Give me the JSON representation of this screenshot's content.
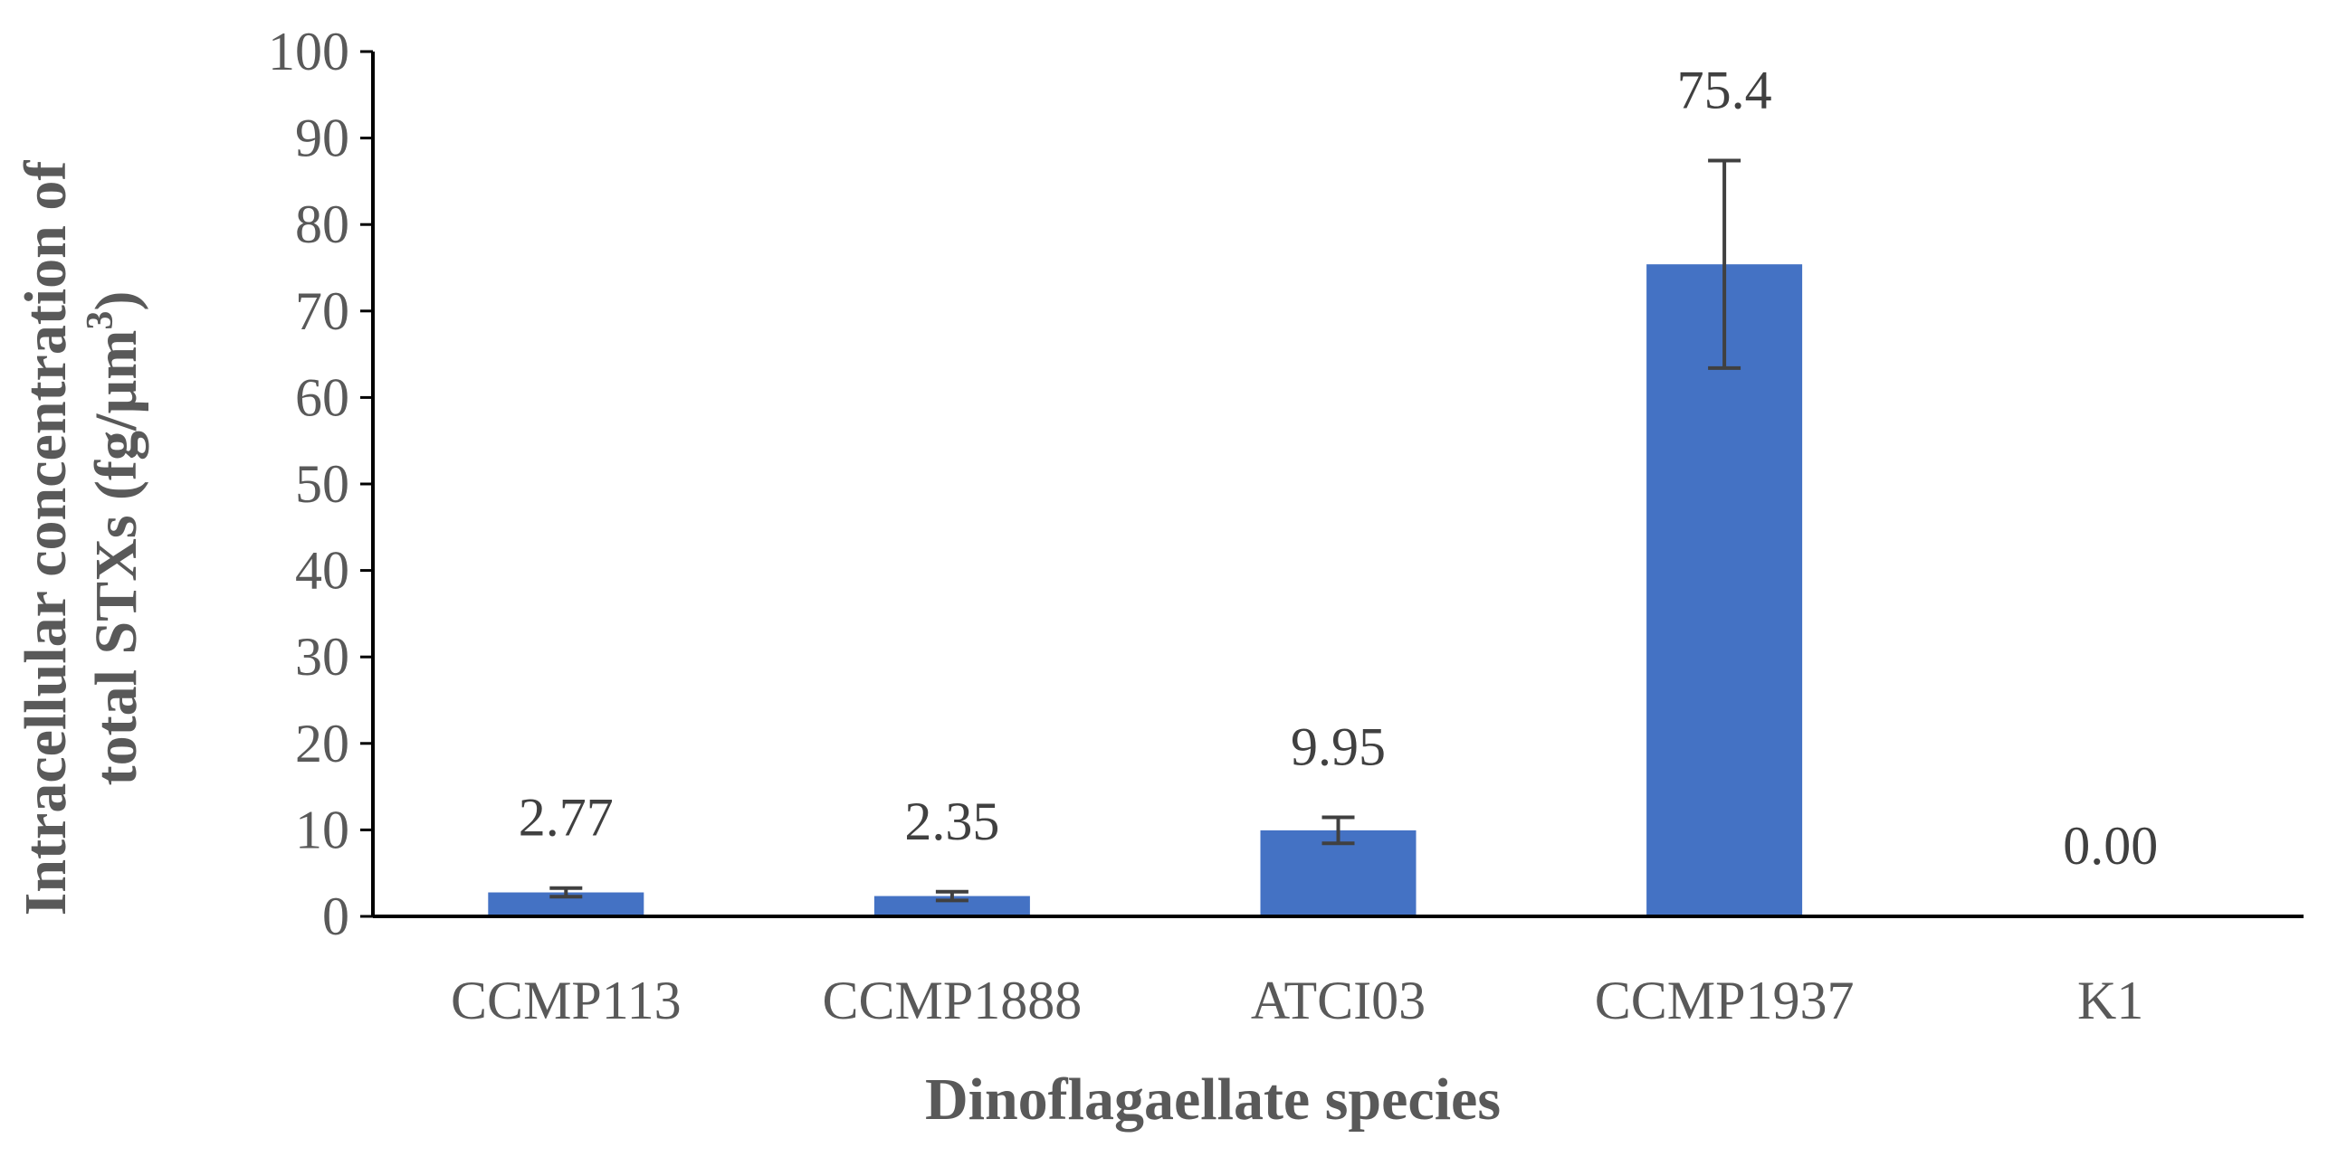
{
  "chart_data": {
    "type": "bar",
    "title": "",
    "xlabel": "Dinoflagaellate species",
    "ylabel_line1": "Intracellular  concentration of",
    "ylabel_line2_prefix": "total STXs (fg/µm",
    "ylabel_line2_sup": "3",
    "ylabel_line2_suffix": ")",
    "categories": [
      "CCMP113",
      "CCMP1888",
      "ATCI03",
      "CCMP1937",
      "K1"
    ],
    "values": [
      2.77,
      2.35,
      9.95,
      75.4,
      0.0
    ],
    "error_plus": [
      0.5,
      0.5,
      1.5,
      12.0,
      0
    ],
    "error_minus": [
      0.5,
      0.5,
      1.5,
      12.0,
      0
    ],
    "data_labels": [
      "2.77",
      "2.35",
      "9.95",
      "75.4",
      "0.00"
    ],
    "ylim": [
      0,
      100
    ],
    "yticks": [
      "0",
      "10",
      "20",
      "30",
      "40",
      "50",
      "60",
      "70",
      "80",
      "90",
      "100"
    ],
    "grid": false,
    "legend": "none",
    "colors": {
      "bar": "#4472C4",
      "error_bar": "#404040",
      "axis": "#000000"
    }
  }
}
